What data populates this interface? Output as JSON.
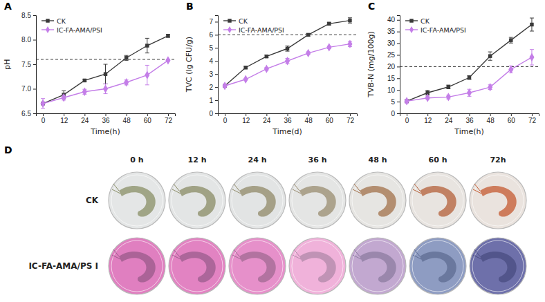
{
  "chart_data": [
    {
      "type": "line",
      "panel": "A",
      "x_label": "Time(h)",
      "y_label": "pH",
      "x": [
        0,
        12,
        24,
        36,
        48,
        60,
        72
      ],
      "xlim": [
        -4,
        76
      ],
      "xticks": [
        0,
        12,
        24,
        36,
        48,
        60,
        72
      ],
      "ylim": [
        6.5,
        8.5
      ],
      "yticks": [
        6.5,
        {
          "value": 7,
          "label": "7.0"
        },
        7.5,
        {
          "value": 8,
          "label": "8.0"
        },
        8.5
      ],
      "threshold": 7.6,
      "legend": "upper left",
      "series": [
        {
          "name": "CK",
          "color": "#3a3a3a",
          "marker": "square",
          "values": [
            6.7,
            6.88,
            7.17,
            7.3,
            7.63,
            7.88,
            8.08
          ],
          "errors": [
            0.02,
            0.08,
            0.02,
            0.2,
            0.05,
            0.15,
            0.03
          ]
        },
        {
          "name": "IC-FA-AMA/PSI",
          "color": "#c47ee8",
          "marker": "diamond",
          "values": [
            6.7,
            6.82,
            6.94,
            7.0,
            7.13,
            7.28,
            7.58
          ],
          "errors": [
            0.1,
            0.05,
            0.05,
            0.1,
            0.05,
            0.2,
            0.02
          ]
        }
      ]
    },
    {
      "type": "line",
      "panel": "B",
      "x_label": "Time(d)",
      "y_label": "TVC (lg CFU/g)",
      "x": [
        0,
        12,
        24,
        36,
        48,
        60,
        72
      ],
      "xlim": [
        -4,
        76
      ],
      "xticks": [
        0,
        12,
        24,
        36,
        48,
        60,
        72
      ],
      "ylim": [
        0,
        7.5
      ],
      "yticks": [
        0,
        1,
        2,
        3,
        4,
        5,
        6,
        7
      ],
      "threshold": 6,
      "legend": "upper left",
      "series": [
        {
          "name": "CK",
          "color": "#3a3a3a",
          "marker": "square",
          "values": [
            2.1,
            3.5,
            4.35,
            4.95,
            6.0,
            6.85,
            7.1
          ],
          "errors": [
            0.1,
            0.1,
            0.1,
            0.2,
            0.1,
            0.1,
            0.2
          ]
        },
        {
          "name": "IC-FA-AMA/PSI",
          "color": "#c47ee8",
          "marker": "diamond",
          "values": [
            2.1,
            2.6,
            3.4,
            4.0,
            4.6,
            5.05,
            5.3
          ],
          "errors": [
            0.1,
            0.05,
            0.1,
            0.2,
            0.1,
            0.1,
            0.2
          ]
        }
      ]
    },
    {
      "type": "line",
      "panel": "C",
      "x_label": "Time(h)",
      "y_label": "TVB-N (mg/100g)",
      "x": [
        0,
        12,
        24,
        36,
        48,
        60,
        72
      ],
      "xlim": [
        -4,
        76
      ],
      "xticks": [
        0,
        12,
        24,
        36,
        48,
        60,
        72
      ],
      "ylim": [
        0,
        42
      ],
      "yticks": [
        0,
        5,
        10,
        15,
        20,
        25,
        30,
        35,
        40
      ],
      "threshold": 20,
      "legend": "upper left",
      "series": [
        {
          "name": "CK",
          "color": "#3a3a3a",
          "marker": "square",
          "values": [
            5.2,
            8.8,
            11.3,
            15.3,
            24.5,
            31.3,
            38.0
          ],
          "errors": [
            0.5,
            1.0,
            0.8,
            0.8,
            1.8,
            1.2,
            2.8
          ]
        },
        {
          "name": "IC-FA-AMA/PSI",
          "color": "#c47ee8",
          "marker": "diamond",
          "values": [
            5.2,
            6.6,
            7.0,
            8.8,
            11.2,
            18.8,
            24.0
          ],
          "errors": [
            0.8,
            0.5,
            0.8,
            1.5,
            1.0,
            1.5,
            3.3
          ]
        }
      ]
    }
  ],
  "photo_panel": {
    "panel": "D",
    "columns": [
      "0 h",
      "12 h",
      "24 h",
      "36 h",
      "48 h",
      "60 h",
      "72h"
    ],
    "rows": [
      {
        "name": "CK",
        "colors": [
          "#e4e6e6",
          "#e3e5e5",
          "#e2e4e4",
          "#e4e5e4",
          "#e6e5e2",
          "#e8e4e0",
          "#eae3de"
        ],
        "shrimp_colors": [
          "#8a8f66",
          "#8a8b64",
          "#908a68",
          "#9a8c70",
          "#a2704a",
          "#b4603a",
          "#c45a30"
        ]
      },
      {
        "name": "IC-FA-AMA/PS I",
        "colors": [
          "#e07fc0",
          "#e283c2",
          "#e690ca",
          "#f0b2da",
          "#c2a8d0",
          "#8e9cc2",
          "#6e70aa"
        ],
        "shrimp_colors": [
          "#9a5a8a",
          "#9a5c8c",
          "#a06a92",
          "#b088a8",
          "#8c7ca0",
          "#5e6c92",
          "#4a4c80"
        ]
      }
    ]
  }
}
